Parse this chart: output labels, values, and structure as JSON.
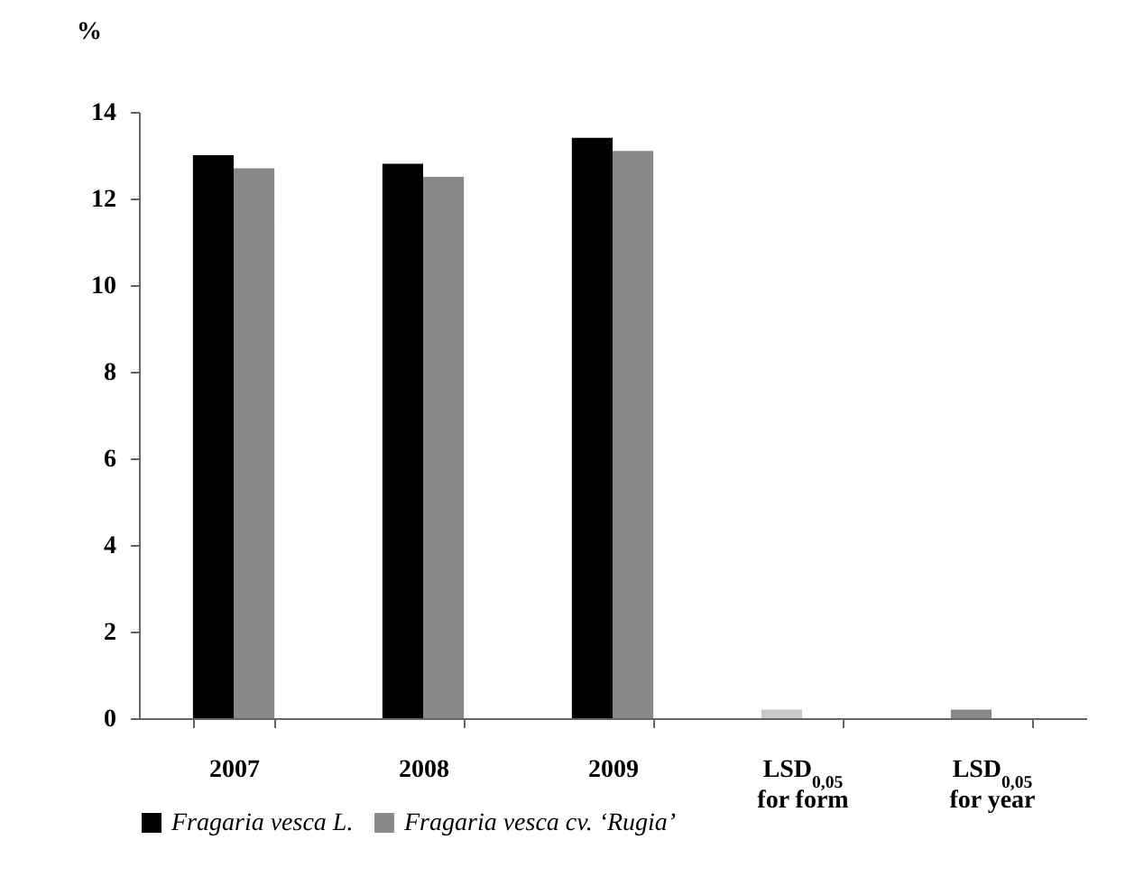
{
  "chart_data": {
    "type": "bar",
    "ylabel": "%",
    "categories": [
      "2007",
      "2008",
      "2009",
      "LSD$_{0,05}$ for form",
      "LSD$_{0,05}$ for year"
    ],
    "series": [
      {
        "name": "Fragaria vesca L.",
        "color": "#000000",
        "colors": [
          "#000000",
          "#000000",
          "#000000",
          "#c8c8c8",
          "#888888"
        ],
        "values": [
          13.0,
          12.8,
          13.4,
          0.2,
          0.2
        ]
      },
      {
        "name": "Fragaria vesca cv. ‘Rugia’",
        "color": "#888888",
        "values": [
          12.7,
          12.5,
          13.1,
          null,
          null
        ]
      }
    ],
    "ylim": [
      0,
      14
    ],
    "yticks": [
      0,
      2,
      4,
      6,
      8,
      10,
      12,
      14
    ],
    "grid": false,
    "legend": "bottom"
  }
}
